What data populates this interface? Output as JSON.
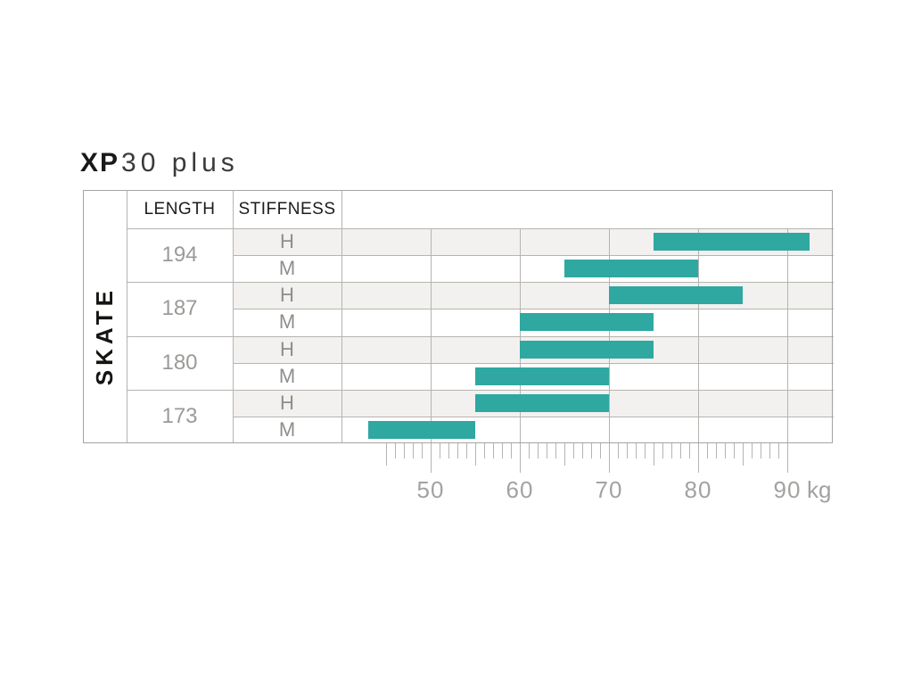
{
  "title": {
    "model_bold": "XP",
    "model_light": "30 plus"
  },
  "side_label": "SKATE",
  "table": {
    "header_length": "LENGTH",
    "header_stiffness": "STIFFNESS"
  },
  "chart_data": {
    "type": "bar",
    "subtype": "horizontal-range",
    "title": "XP30 plus",
    "category_label": "SKATE",
    "unit": "kg",
    "axis": {
      "tick_min": 45,
      "tick_max": 90,
      "minor_step": 1,
      "labeled_ticks": [
        50,
        60,
        70,
        80,
        90
      ],
      "label_suffix": "kg",
      "xlim": [
        40,
        95
      ]
    },
    "rows": [
      {
        "length": "194",
        "stiffness": "H",
        "min_kg": 75,
        "max_kg": 92.5
      },
      {
        "length": "194",
        "stiffness": "M",
        "min_kg": 65,
        "max_kg": 80
      },
      {
        "length": "187",
        "stiffness": "H",
        "min_kg": 70,
        "max_kg": 85
      },
      {
        "length": "187",
        "stiffness": "M",
        "min_kg": 60,
        "max_kg": 75
      },
      {
        "length": "180",
        "stiffness": "H",
        "min_kg": 60,
        "max_kg": 75
      },
      {
        "length": "180",
        "stiffness": "M",
        "min_kg": 55,
        "max_kg": 70
      },
      {
        "length": "173",
        "stiffness": "H",
        "min_kg": 55,
        "max_kg": 70
      },
      {
        "length": "173",
        "stiffness": "M",
        "min_kg": 43,
        "max_kg": 55
      }
    ]
  },
  "colors": {
    "bar": "#2EA8A1",
    "shaded_row": "#F2F1EF",
    "grid_line": "#B5B4B1",
    "outer_border": "#A5A4A1",
    "header_text": "#1D1C1A",
    "muted_text": "#9B9A97",
    "axis_text": "#A3A2A0"
  }
}
